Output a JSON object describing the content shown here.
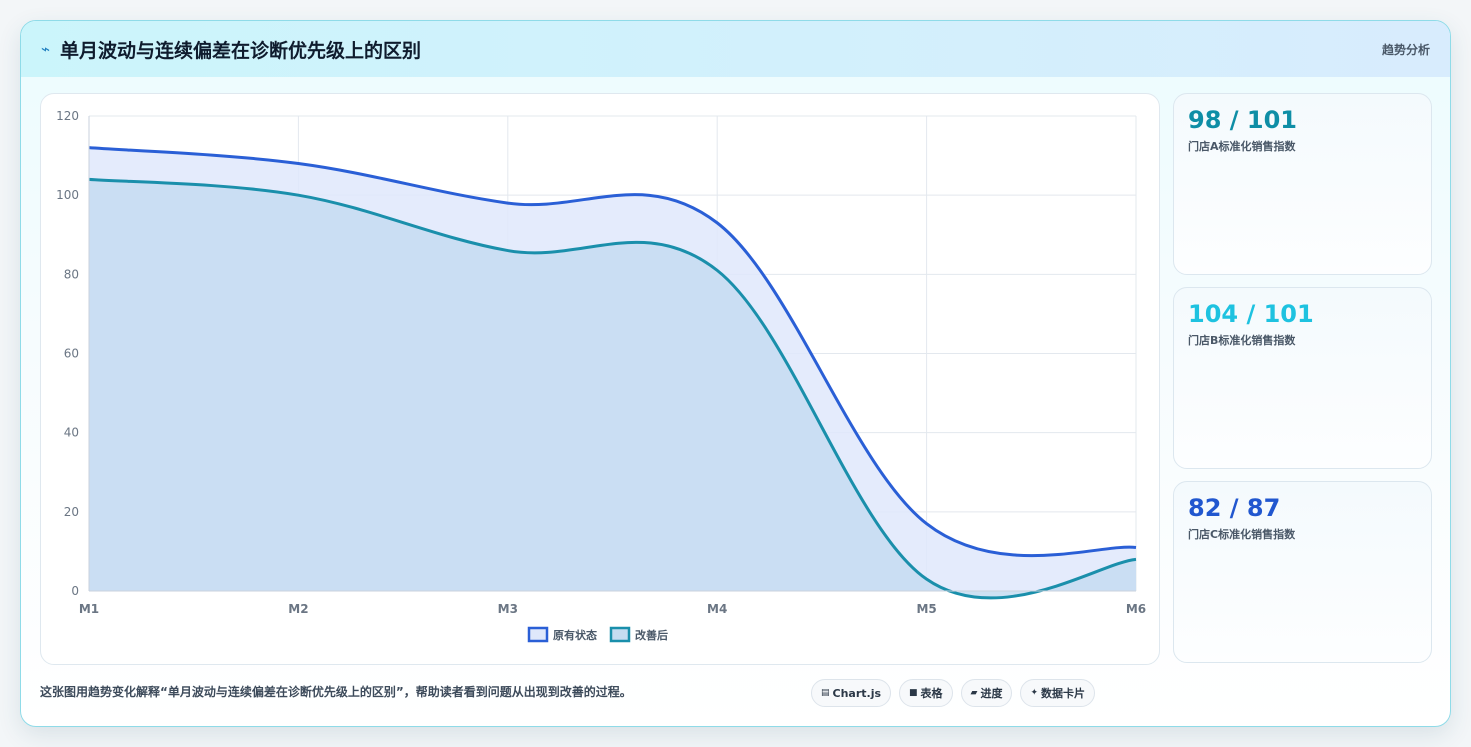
{
  "header": {
    "icon": "lightning-icon",
    "title": "单月波动与连续偏差在诊断优先级上的区别",
    "tag": "趋势分析"
  },
  "chart_data": {
    "type": "area",
    "categories": [
      "M1",
      "M2",
      "M3",
      "M4",
      "M5",
      "M6"
    ],
    "ylim": [
      0,
      120
    ],
    "yticks": [
      0,
      20,
      40,
      60,
      80,
      100,
      120
    ],
    "grid": true,
    "legend_position": "bottom",
    "series": [
      {
        "name": "原有状态",
        "values": [
          112,
          108,
          98,
          93,
          17,
          11
        ],
        "color": "#2a5fd6",
        "fill": "#dfe8fb"
      },
      {
        "name": "改善后",
        "values": [
          104,
          100,
          86,
          81,
          3,
          8
        ],
        "color": "#1a8fab",
        "fill": "#c5dcf1"
      }
    ]
  },
  "kpis": [
    {
      "value": "98 / 101",
      "label": "门店A标准化销售指数",
      "color": "#0e8ea6"
    },
    {
      "value": "104 / 101",
      "label": "门店B标准化销售指数",
      "color": "#1ec2e0"
    },
    {
      "value": "82 / 87",
      "label": "门店C标准化销售指数",
      "color": "#2157cf"
    }
  ],
  "caption": "这张图用趋势变化解释“单月波动与连续偏差在诊断优先级上的区别”，帮助读者看到问题从出现到改善的过程。",
  "chips": [
    {
      "icon": "chart-icon",
      "glyph": "▤",
      "label": "Chart.js"
    },
    {
      "icon": "table-icon",
      "glyph": "■",
      "label": "表格"
    },
    {
      "icon": "progress-icon",
      "glyph": "▰",
      "label": "进度"
    },
    {
      "icon": "sparkle-icon",
      "glyph": "✦",
      "label": "数据卡片"
    }
  ]
}
